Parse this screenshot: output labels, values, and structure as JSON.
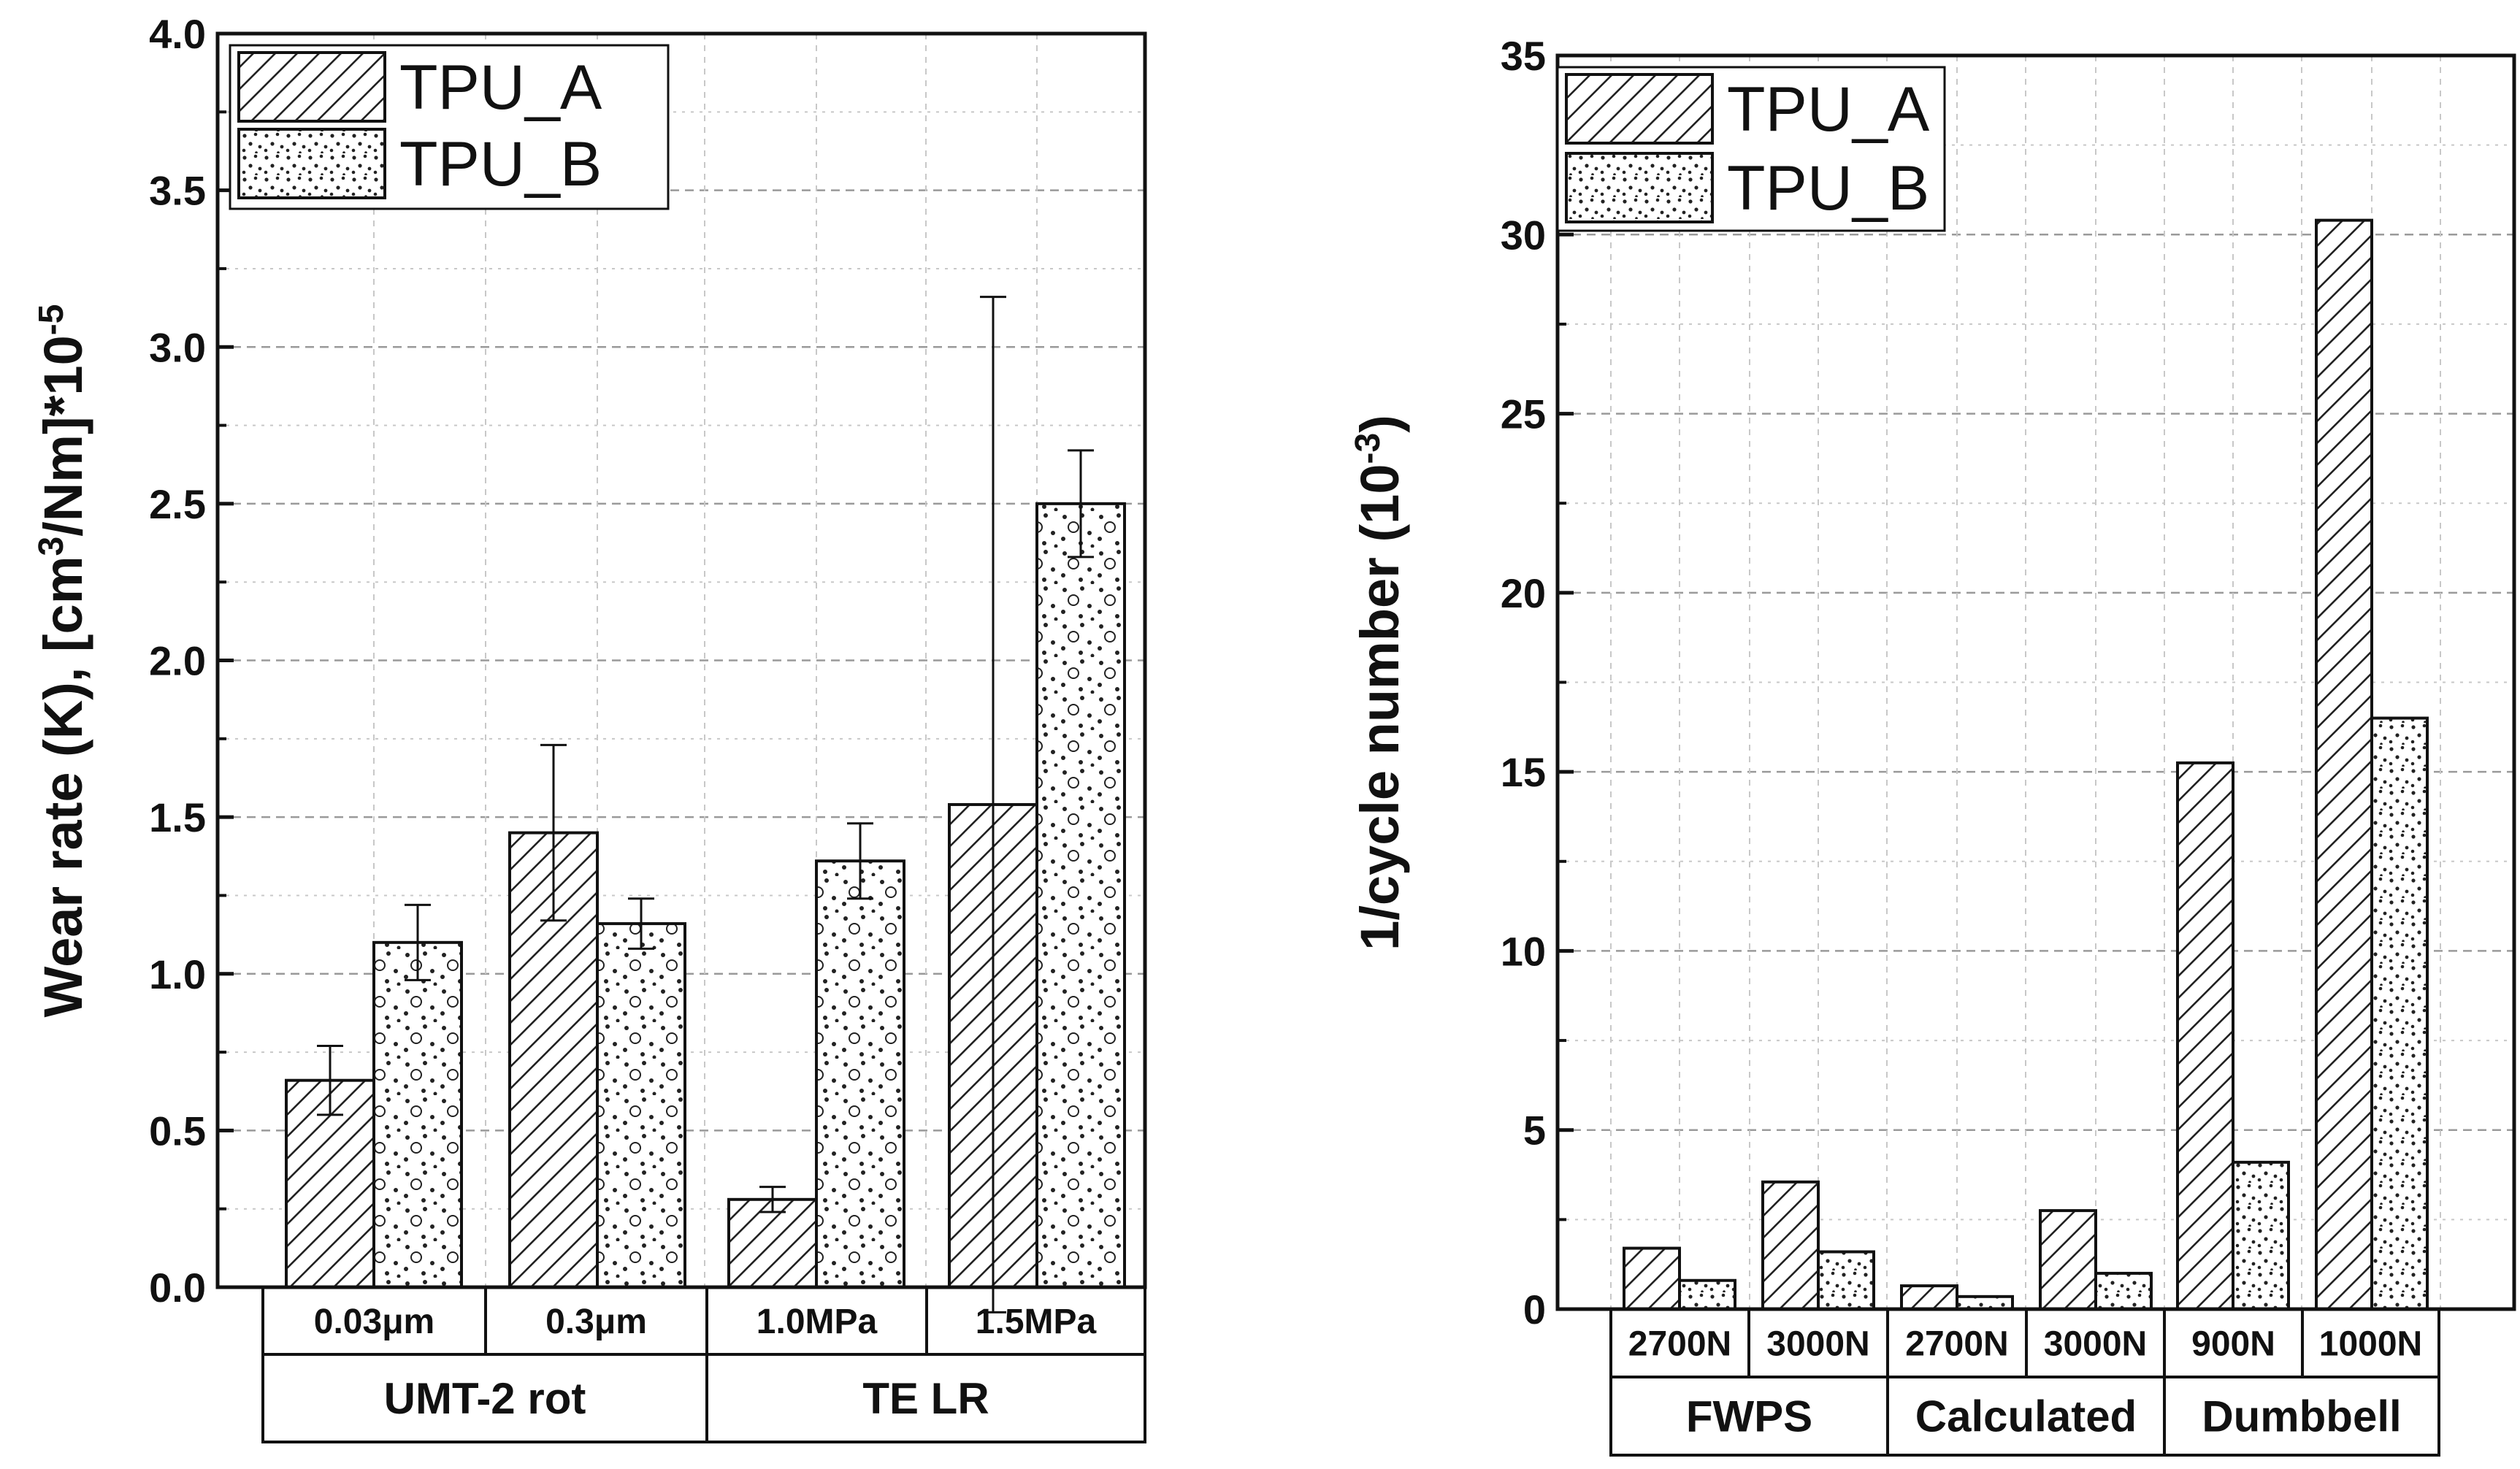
{
  "chart_data": [
    {
      "type": "bar",
      "title": "",
      "ylabel_main": "Wear rate (K), [cm",
      "ylabel_sup1": "3",
      "ylabel_mid": "/Nm]*10",
      "ylabel_sup2": "-5",
      "ylim": [
        0,
        4.0
      ],
      "yticks": [
        "0.0",
        "0.5",
        "1.0",
        "1.5",
        "2.0",
        "2.5",
        "3.0",
        "3.5",
        "4.0"
      ],
      "ytick_values": [
        0,
        0.5,
        1.0,
        1.5,
        2.0,
        2.5,
        3.0,
        3.5,
        4.0
      ],
      "categories": [
        "0.03μm",
        "0.3μm",
        "1.0MPa",
        "1.5MPa"
      ],
      "groups": [
        {
          "label": "UMT-2 rot",
          "span": 2
        },
        {
          "label": "TE LR",
          "span": 2
        }
      ],
      "series": [
        {
          "name": "TPU_A",
          "pattern": "hatch",
          "values": [
            0.66,
            1.45,
            0.28,
            1.54
          ],
          "errors": [
            0.11,
            0.28,
            0.04,
            1.62
          ]
        },
        {
          "name": "TPU_B",
          "pattern": "dots",
          "values": [
            1.1,
            1.16,
            1.36,
            2.5
          ],
          "errors": [
            0.12,
            0.08,
            0.12,
            0.17
          ]
        }
      ],
      "legend": "top-left",
      "grid": true
    },
    {
      "type": "bar",
      "title": "",
      "ylabel_main": "1/cycle number (10",
      "ylabel_sup": "-3",
      "ylabel_end": ")",
      "ylim": [
        0,
        35
      ],
      "yticks": [
        "0",
        "5",
        "10",
        "15",
        "20",
        "25",
        "30",
        "35"
      ],
      "ytick_values": [
        0,
        5,
        10,
        15,
        20,
        25,
        30,
        35
      ],
      "categories": [
        "2700N",
        "3000N",
        "2700N",
        "3000N",
        "900N",
        "1000N"
      ],
      "groups": [
        {
          "label": "FWPS",
          "span": 2
        },
        {
          "label": "Calculated",
          "span": 2
        },
        {
          "label": "Dumbbell",
          "span": 2
        }
      ],
      "series": [
        {
          "name": "TPU_A",
          "pattern": "hatch",
          "values": [
            1.7,
            3.55,
            0.65,
            2.75,
            15.25,
            30.4
          ]
        },
        {
          "name": "TPU_B",
          "pattern": "dots",
          "values": [
            0.8,
            1.6,
            0.35,
            1.0,
            4.1,
            16.5
          ]
        }
      ],
      "legend": "top-left",
      "grid": true
    }
  ]
}
